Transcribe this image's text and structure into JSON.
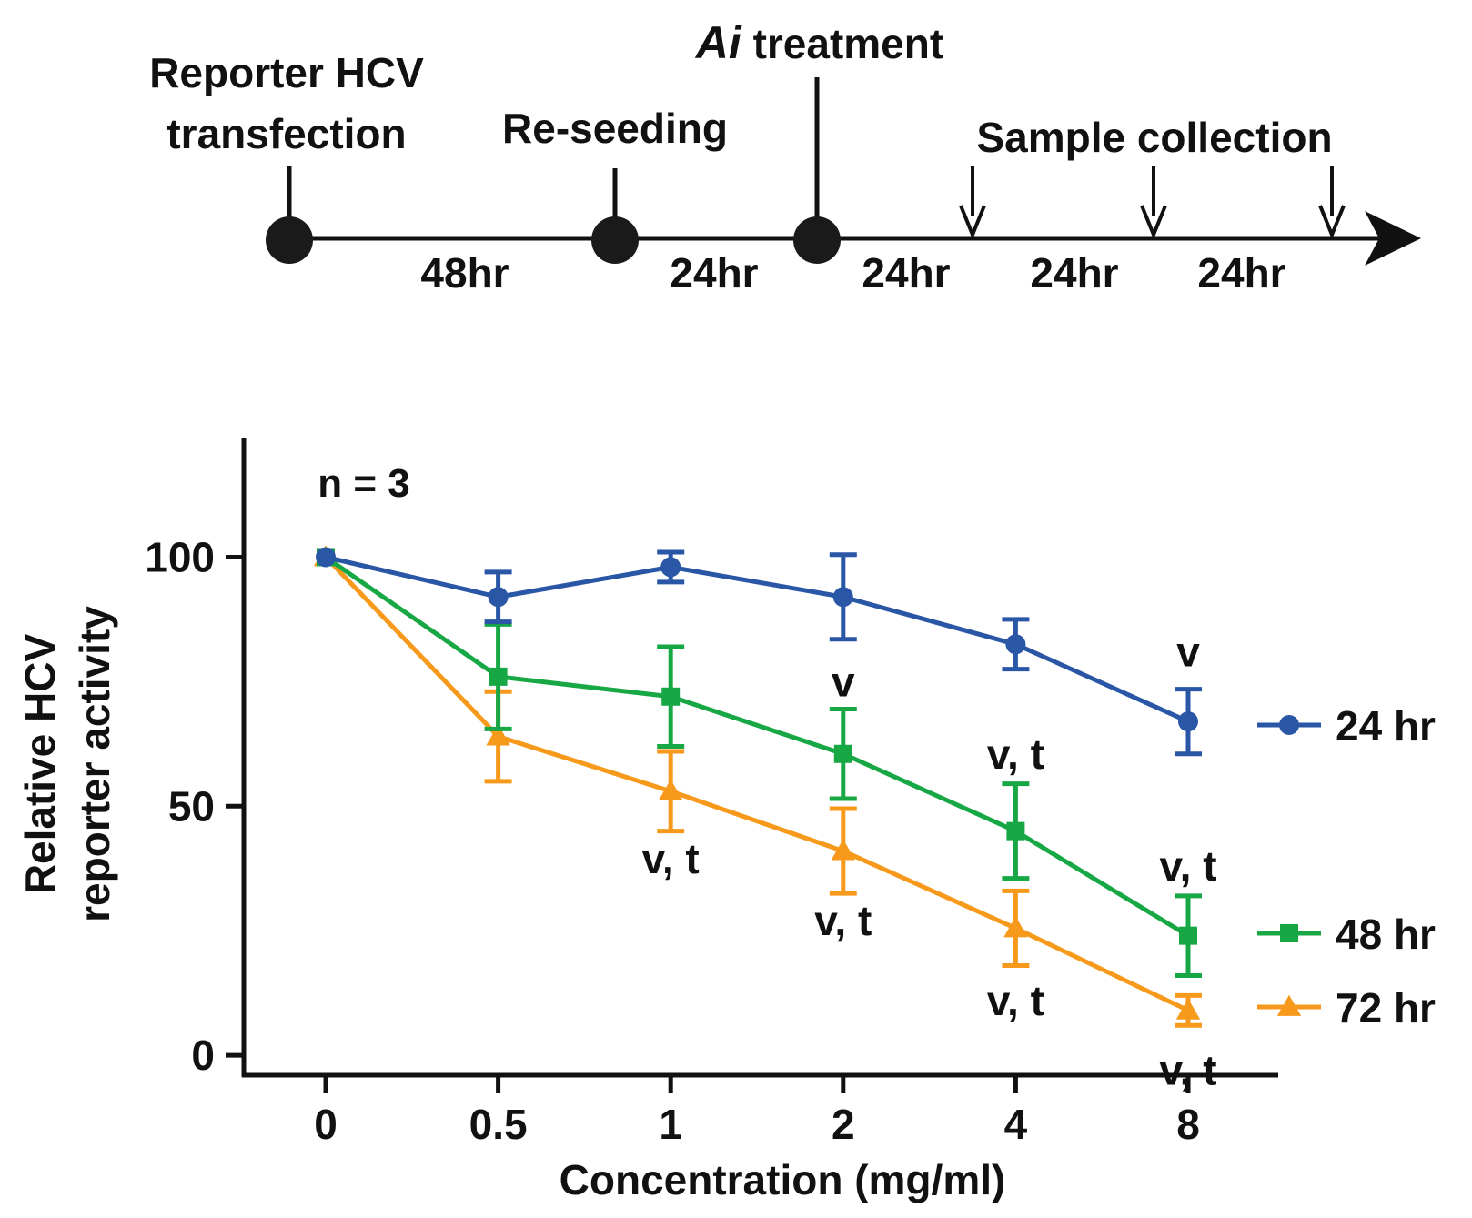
{
  "timeline": {
    "events": [
      {
        "label_lines": [
          "Reporter HCV",
          "transfection"
        ]
      },
      {
        "label_lines": [
          "Re-seeding"
        ]
      },
      {
        "label_italic": "Ai",
        "label_rest": " treatment"
      }
    ],
    "sample_label": "Sample collection",
    "intervals": [
      "48hr",
      "24hr",
      "24hr",
      "24hr",
      "24hr"
    ]
  },
  "chart_data": {
    "type": "line",
    "title": "",
    "annotation_n": "n = 3",
    "xlabel": "Concentration (mg/ml)",
    "ylabel_lines": [
      "Relative HCV",
      "reporter activity"
    ],
    "categories": [
      "0",
      "0.5",
      "1",
      "2",
      "4",
      "8"
    ],
    "yticks": [
      "0",
      "50",
      "100"
    ],
    "ylim": [
      -4,
      124
    ],
    "series": [
      {
        "name": "24 hr",
        "color": "#2a56a6",
        "marker": "circle",
        "values": [
          100,
          92,
          98,
          92,
          82.5,
          67
        ],
        "errors": [
          0,
          5,
          3,
          8.5,
          5,
          6.5
        ]
      },
      {
        "name": "48 hr",
        "color": "#17a845",
        "marker": "square",
        "values": [
          100,
          76,
          72,
          60.5,
          45,
          24
        ],
        "errors": [
          0,
          10.5,
          10,
          9,
          9.5,
          8
        ]
      },
      {
        "name": "72 hr",
        "color": "#f79a1c",
        "marker": "triangle",
        "values": [
          100,
          64,
          53,
          41,
          25.5,
          9
        ],
        "errors": [
          0,
          9,
          8,
          8.5,
          7.5,
          3
        ]
      }
    ],
    "significance": [
      {
        "text": "v",
        "x_index": 3,
        "y": 75
      },
      {
        "text": "v",
        "x_index": 5,
        "y": 81
      },
      {
        "text": "v, t",
        "x_index": 4,
        "y": 60.5
      },
      {
        "text": "v, t",
        "x_index": 2,
        "y": 39.5
      },
      {
        "text": "v, t",
        "x_index": 3,
        "y": 27
      },
      {
        "text": "v, t",
        "x_index": 5,
        "y": 38
      },
      {
        "text": "v, t",
        "x_index": 4,
        "y": 11
      },
      {
        "text": "v, t",
        "x_index": 5,
        "y": -3
      }
    ]
  }
}
